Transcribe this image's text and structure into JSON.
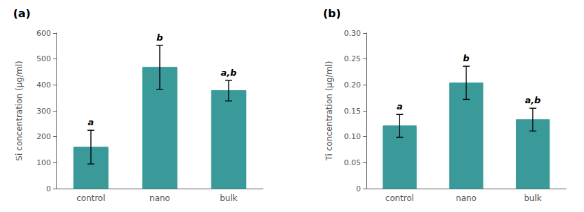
{
  "chart_data": [
    {
      "type": "bar",
      "title": "(a)",
      "categories": [
        "control",
        "nano",
        "bulk"
      ],
      "values": [
        160,
        468,
        378
      ],
      "errors": [
        65,
        85,
        40
      ],
      "sig_labels": [
        "a",
        "b",
        "a,b"
      ],
      "ylabel": "Si concentration (μg/ml)",
      "ylim": [
        0,
        600
      ],
      "yticks": [
        0,
        100,
        200,
        300,
        400,
        500,
        600
      ],
      "color": "#3a9a9a",
      "grid": false
    },
    {
      "type": "bar",
      "title": "(b)",
      "categories": [
        "control",
        "nano",
        "bulk"
      ],
      "values": [
        0.121,
        0.204,
        0.133
      ],
      "errors": [
        0.022,
        0.032,
        0.022
      ],
      "sig_labels": [
        "a",
        "b",
        "a,b"
      ],
      "ylabel": "Ti concentration (μg/ml)",
      "ylim": [
        0,
        0.3
      ],
      "yticks": [
        0,
        0.05,
        {
          "value": 0.1,
          "label": "0.10"
        },
        0.15,
        {
          "value": 0.2,
          "label": "0.20"
        },
        0.25,
        {
          "value": 0.3,
          "label": "0.30"
        }
      ],
      "color": "#3a9a9a",
      "grid": false
    }
  ]
}
